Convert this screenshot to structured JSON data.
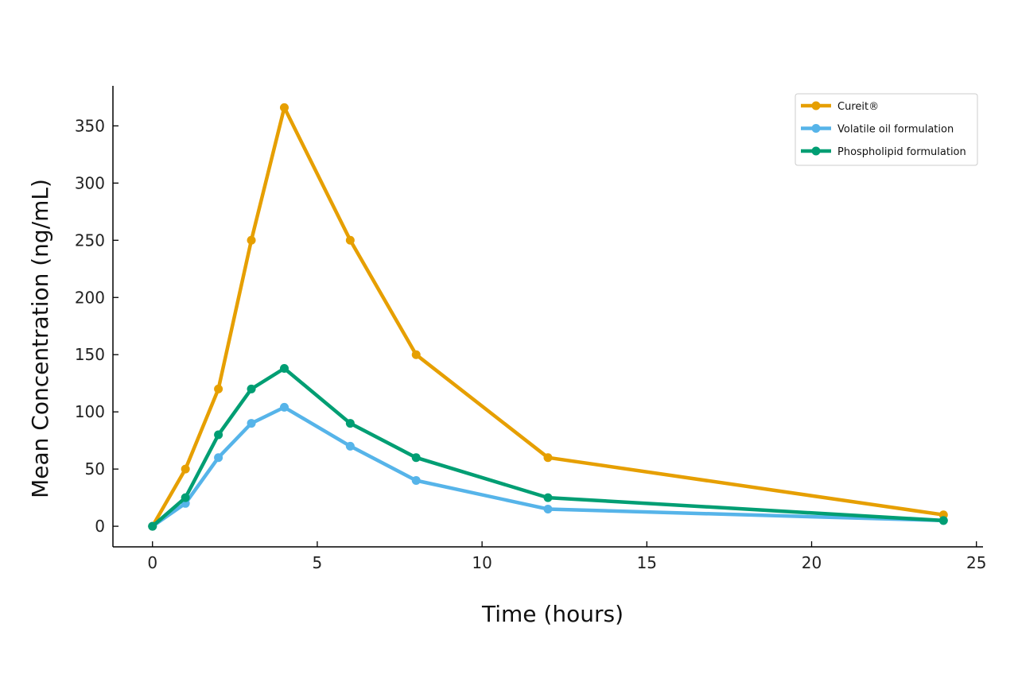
{
  "chart_data": {
    "type": "line",
    "title": "",
    "xlabel": "Time (hours)",
    "ylabel": "Mean Concentration (ng/mL)",
    "xlim": [
      -1.2,
      25.2
    ],
    "ylim": [
      -18,
      385
    ],
    "xticks": [
      0,
      5,
      10,
      15,
      20,
      25
    ],
    "yticks": [
      0,
      50,
      100,
      150,
      200,
      250,
      300,
      350
    ],
    "grid": false,
    "legend_position": "top-right",
    "x": [
      0,
      1,
      2,
      3,
      4,
      6,
      8,
      12,
      24
    ],
    "series": [
      {
        "name": "Cureit®",
        "color": "#E69F00",
        "values": [
          0,
          50,
          120,
          250,
          366,
          250,
          150,
          60,
          10
        ]
      },
      {
        "name": "Volatile oil formulation",
        "color": "#56B4E9",
        "values": [
          0,
          20,
          60,
          90,
          104,
          70,
          40,
          15,
          5
        ]
      },
      {
        "name": "Phospholipid formulation",
        "color": "#009E73",
        "values": [
          0,
          25,
          80,
          120,
          138,
          90,
          60,
          25,
          5
        ]
      }
    ]
  }
}
